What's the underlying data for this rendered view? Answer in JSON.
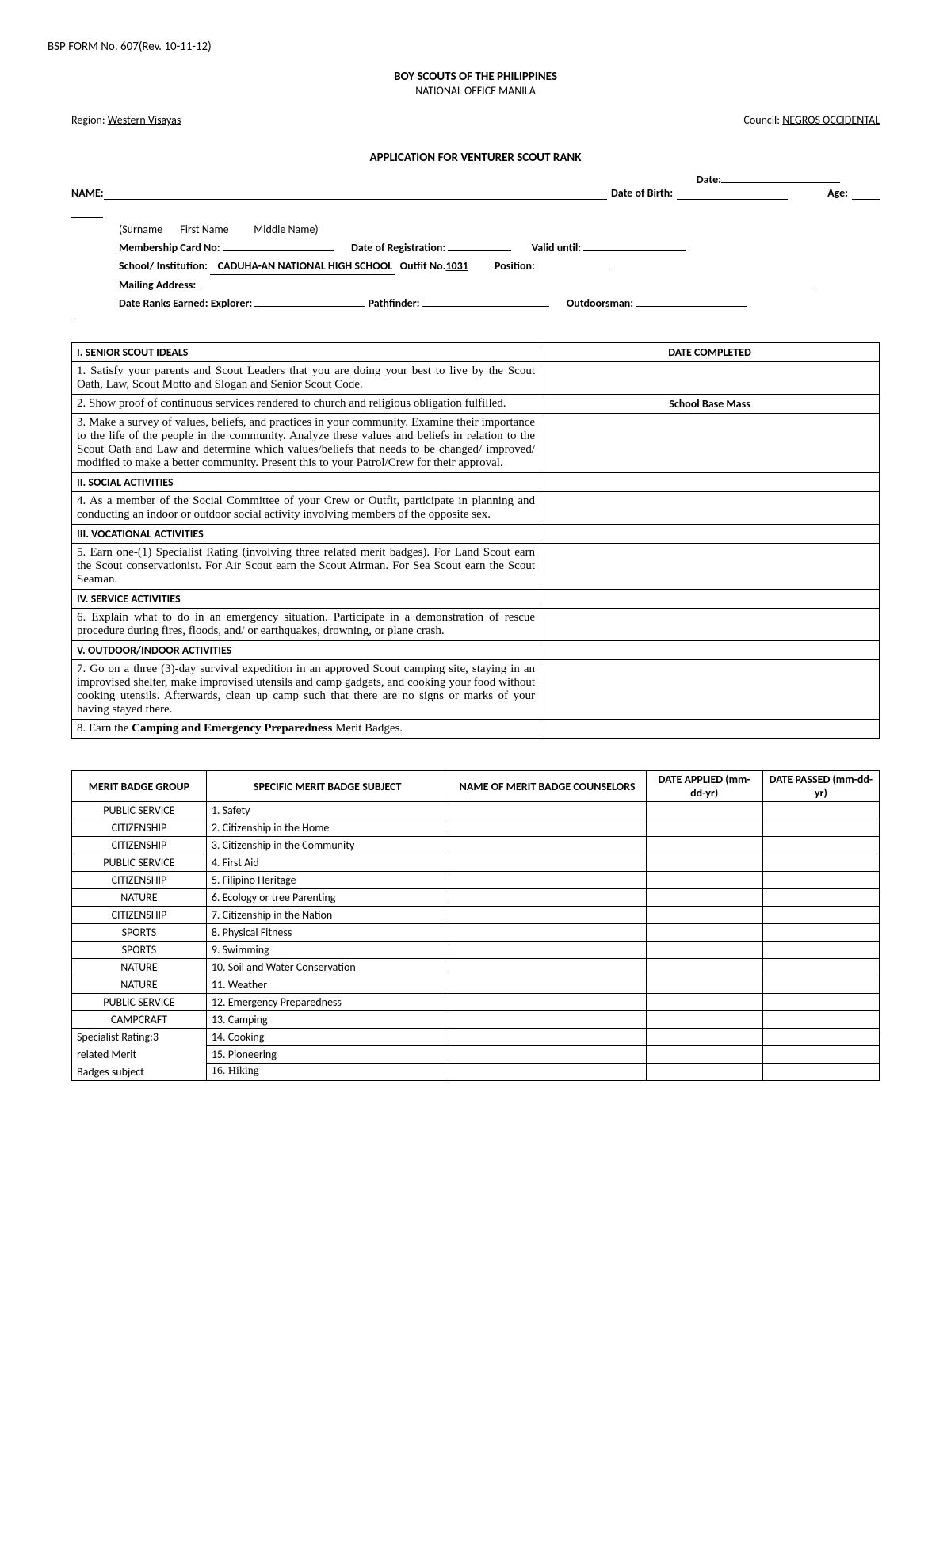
{
  "form_no": "BSP FORM No. 607(Rev. 10-11-12)",
  "org_title": "BOY SCOUTS OF THE PHILIPPINES",
  "org_subtitle": "NATIONAL OFFICE MANILA",
  "region_label": "Region: ",
  "region_value": "Western Visayas",
  "council_label": "Council: ",
  "council_value": "NEGROS OCCIDENTAL",
  "app_title": "APPLICATION FOR VENTURER SCOUT RANK",
  "date_label": "Date:",
  "name_label": "NAME:",
  "dob_label": "Date of Birth:",
  "age_label": "Age:",
  "name_parts": "(Surname       First Name          Middle Name)",
  "memcard_label": "Membership Card No:",
  "datereg_label": "Date of Registration:",
  "valid_label": "Valid until:",
  "school_label": "School/ Institution:",
  "school_value": "CADUHA-AN NATIONAL HIGH SCHOOL",
  "outfit_label": "Outfit No.",
  "outfit_value": "1031",
  "position_label": "Position:",
  "mailing_label": "Mailing Address:",
  "ranks_label": "Date Ranks Earned: Explorer:",
  "pathfinder_label": "Pathfinder:",
  "outdoorsman_label": "Outdoorsman:",
  "ideals": {
    "col_date": "DATE COMPLETED",
    "s1": "I. SENIOR SCOUT IDEALS",
    "r1": "1. Satisfy your parents and Scout Leaders that you are doing your best to live by the Scout Oath, Law, Scout Motto and Slogan and Senior Scout Code.",
    "r2": "2. Show proof of continuous services rendered to church and religious obligation fulfilled.",
    "r2_note": "School Base Mass",
    "r3": "3. Make a survey of values, beliefs, and practices in your community. Examine their importance to the life of the people in the community. Analyze these values and beliefs in relation to the Scout Oath and Law and determine which values/beliefs that needs to be changed/ improved/ modified to make a better community. Present this to your Patrol/Crew for their approval.",
    "s2": "II. SOCIAL ACTIVITIES",
    "r4": "4. As a member of the Social Committee of your Crew or Outfit, participate in planning and conducting an indoor or outdoor social activity involving members of the opposite sex.",
    "s3": "III. VOCATIONAL ACTIVITIES",
    "r5": "5.  Earn one-(1) Specialist Rating (involving three related merit badges). For Land Scout earn the Scout conservationist. For Air Scout earn the Scout Airman. For Sea Scout earn the Scout Seaman.",
    "s4": "IV. SERVICE ACTIVITIES",
    "r6": "6. Explain what to do in an emergency situation. Participate in a demonstration of rescue procedure during fires, floods, and/ or earthquakes, drowning, or plane crash.",
    "s5": "V. OUTDOOR/INDOOR ACTIVITIES",
    "r7": "7. Go on a three (3)-day survival expedition in an approved Scout camping site, staying in an improvised shelter, make improvised utensils and camp gadgets, and cooking your food without cooking utensils. Afterwards, clean up camp such that there are no signs or marks of your having stayed there.",
    "r8a": "8. Earn the ",
    "r8b": "Camping and Emergency Preparedness",
    "r8c": " Merit Badges."
  },
  "merit": {
    "h1": "MERIT BADGE GROUP",
    "h2": "SPECIFIC MERIT BADGE SUBJECT",
    "h3": "NAME OF MERIT BADGE COUNSELORS",
    "h4": "DATE APPLIED (mm-dd-yr)",
    "h5": "DATE PASSED (mm-dd-yr)",
    "rows": [
      {
        "g": "PUBLIC SERVICE",
        "s": "1.    Safety"
      },
      {
        "g": "CITIZENSHIP",
        "s": "2. Citizenship in the Home"
      },
      {
        "g": "CITIZENSHIP",
        "s": "3. Citizenship in the Community"
      },
      {
        "g": "PUBLIC SERVICE",
        "s": "4. First Aid"
      },
      {
        "g": "CITIZENSHIP",
        "s": "5. Filipino Heritage"
      },
      {
        "g": "NATURE",
        "s": "6. Ecology or tree Parenting"
      },
      {
        "g": "CITIZENSHIP",
        "s": "7. Citizenship in the Nation"
      },
      {
        "g": "SPORTS",
        "s": "8. Physical Fitness"
      },
      {
        "g": "SPORTS",
        "s": "9. Swimming"
      },
      {
        "g": "NATURE",
        "s": "10. Soil and Water Conservation"
      },
      {
        "g": "NATURE",
        "s": "11.  Weather"
      },
      {
        "g": "PUBLIC SERVICE",
        "s": "12. Emergency Preparedness"
      },
      {
        "g": "CAMPCRAFT",
        "s": "13. Camping"
      }
    ],
    "span_g1": "Specialist Rating:3",
    "span_g2": "related Merit",
    "span_g3": "Badges subject",
    "r14": "14. Cooking",
    "r15": "15. Pioneering",
    "r16": "16. Hiking"
  }
}
